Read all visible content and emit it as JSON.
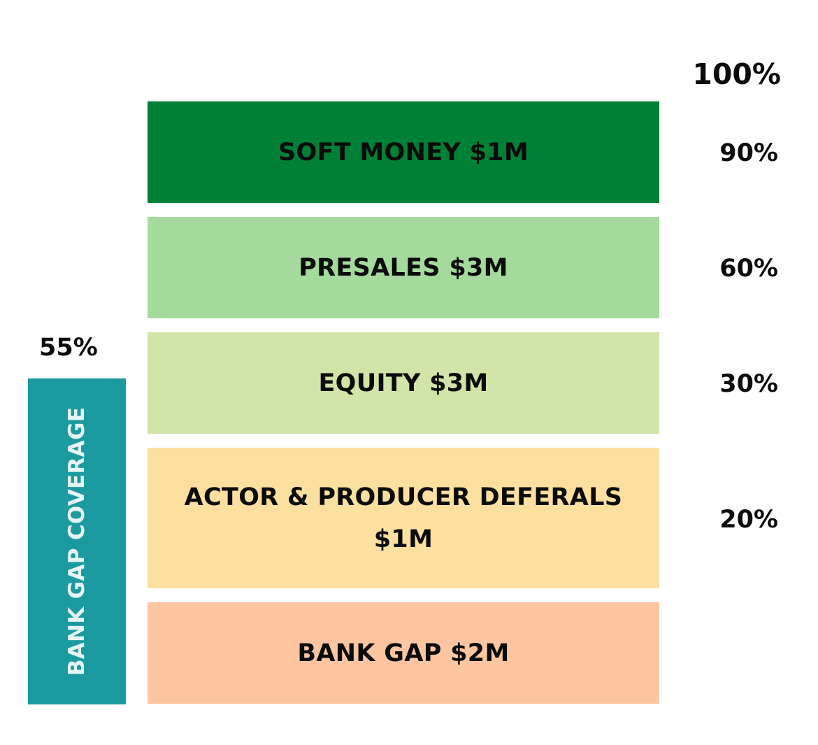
{
  "blocks": {
    "soft_money": {
      "label": "SOFT MONEY $1M",
      "color": "#008036"
    },
    "presales": {
      "label": "PRESALES $3M",
      "color": "#a4da9c"
    },
    "equity": {
      "label": "EQUITY $3M",
      "color": "#d1e4a8"
    },
    "deferrals": {
      "label": "ACTOR & PRODUCER DEFERALS $1M",
      "color": "#fde0a0"
    },
    "bank_gap": {
      "label": "BANK GAP $2M",
      "color": "#fdc6a0"
    }
  },
  "percentages": {
    "p100": "100%",
    "p90": "90%",
    "p60": "60%",
    "p30": "30%",
    "p20": "20%",
    "p55": "55%"
  },
  "coverage": {
    "label": "BANK GAP COVERAGE",
    "color": "#1b9aa0"
  }
}
